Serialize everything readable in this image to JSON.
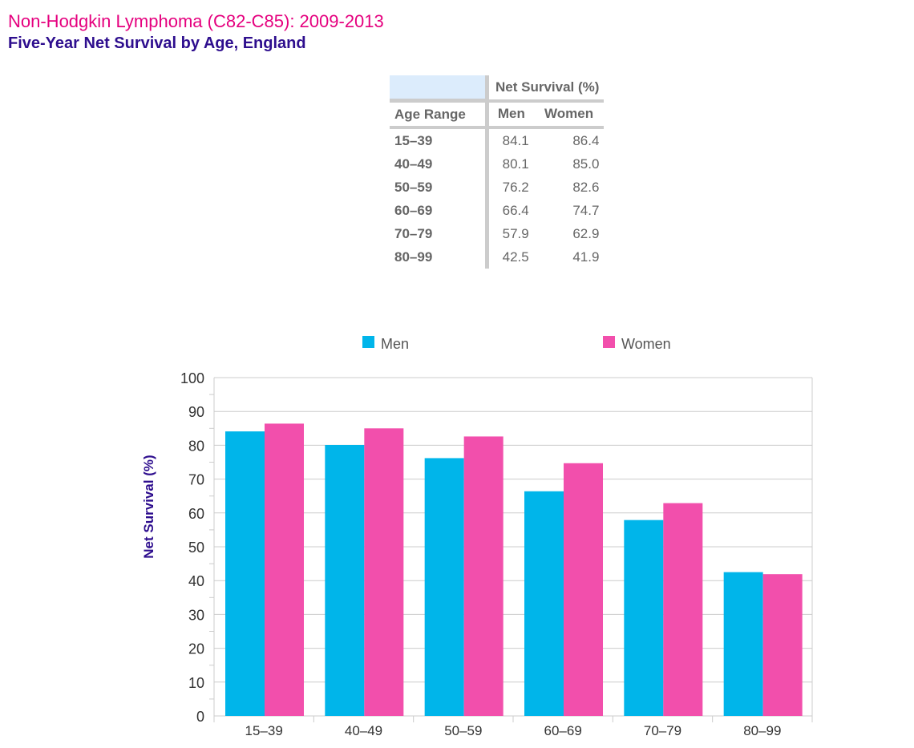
{
  "title": "Non-Hodgkin Lymphoma (C82-C85): 2009-2013",
  "subtitle": "Five-Year Net Survival by Age, England",
  "table": {
    "header_group": "Net Survival (%)",
    "col_age": "Age Range",
    "col_men": "Men",
    "col_women": "Women",
    "rows": [
      {
        "age": "15–39",
        "men": "84.1",
        "women": "86.4"
      },
      {
        "age": "40–49",
        "men": "80.1",
        "women": "85.0"
      },
      {
        "age": "50–59",
        "men": "76.2",
        "women": "82.6"
      },
      {
        "age": "60–69",
        "men": "66.4",
        "women": "74.7"
      },
      {
        "age": "70–79",
        "men": "57.9",
        "women": "62.9"
      },
      {
        "age": "80–99",
        "men": "42.5",
        "women": "41.9"
      }
    ]
  },
  "chart_data": {
    "type": "bar",
    "categories": [
      "15–39",
      "40–49",
      "50–59",
      "60–69",
      "70–79",
      "80–99"
    ],
    "series": [
      {
        "name": "Men",
        "color": "#00b5ea",
        "values": [
          84.1,
          80.1,
          76.2,
          66.4,
          57.9,
          42.5
        ]
      },
      {
        "name": "Women",
        "color": "#f24fac",
        "values": [
          86.4,
          85.0,
          82.6,
          74.7,
          62.9,
          41.9
        ]
      }
    ],
    "ylabel": "Net Survival (%)",
    "ylim": [
      0,
      100
    ],
    "yticks": [
      0,
      10,
      20,
      30,
      40,
      50,
      60,
      70,
      80,
      90,
      100
    ],
    "grid": true,
    "legend": "top"
  }
}
